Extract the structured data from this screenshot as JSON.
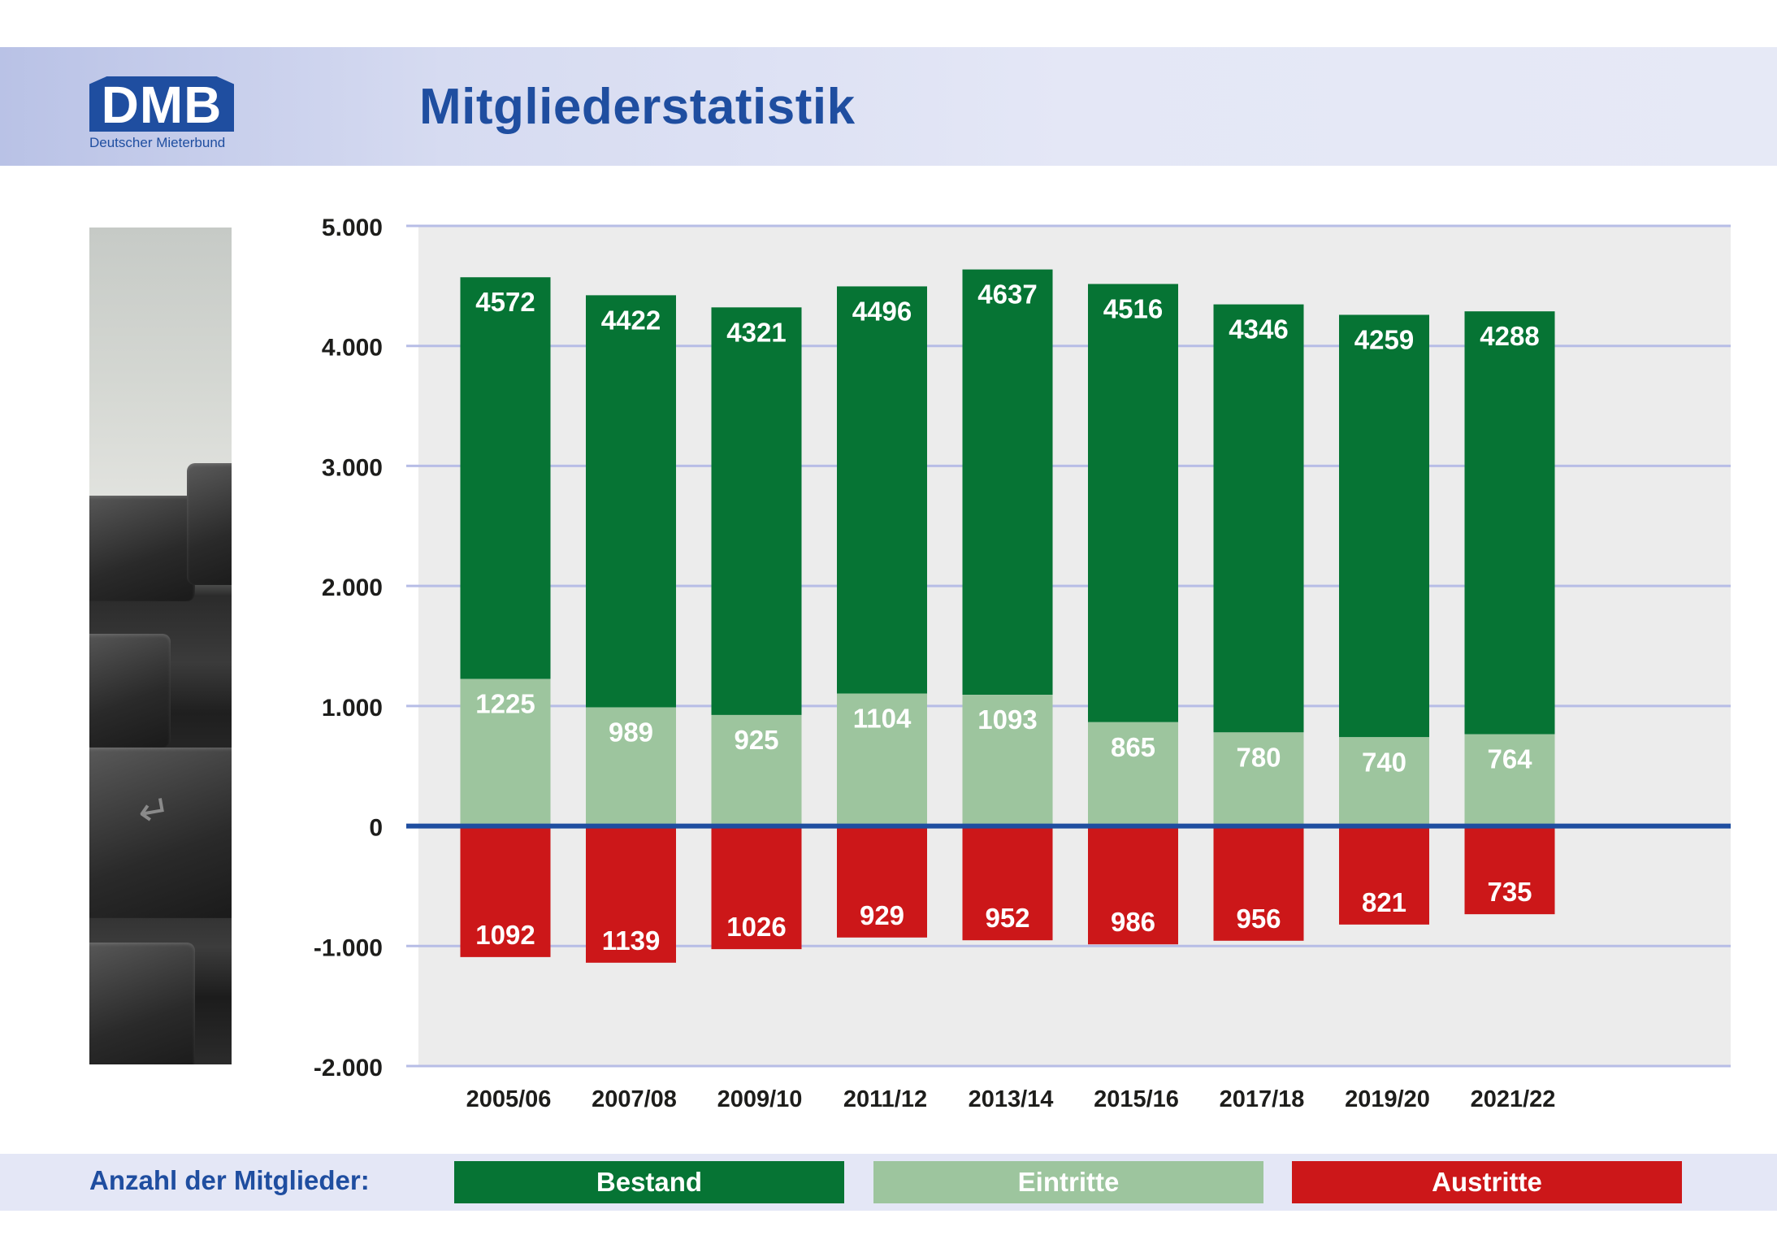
{
  "header": {
    "logo_text": "DMB",
    "logo_subtitle": "Deutscher Mieterbund",
    "title": "Mitgliederstatistik"
  },
  "legend": {
    "title": "Anzahl der Mitglieder:",
    "items": [
      {
        "label": "Bestand",
        "color": "#067434"
      },
      {
        "label": "Eintritte",
        "color": "#9dc59e"
      },
      {
        "label": "Austritte",
        "color": "#cc1719"
      }
    ]
  },
  "colors": {
    "plot_background": "#ececec",
    "gridline": "#b7bde6",
    "zero_line": "#1f4ea0",
    "axis_text": "#1d1d1b",
    "bar_label": "#ffffff"
  },
  "chart_data": {
    "type": "bar",
    "categories": [
      "2005/06",
      "2007/08",
      "2009/10",
      "2011/12",
      "2013/14",
      "2015/16",
      "2017/18",
      "2019/20",
      "2021/22"
    ],
    "series": [
      {
        "name": "Bestand",
        "values": [
          4572,
          4422,
          4321,
          4496,
          4637,
          4516,
          4346,
          4259,
          4288
        ]
      },
      {
        "name": "Eintritte",
        "values": [
          1225,
          989,
          925,
          1104,
          1093,
          865,
          780,
          740,
          764
        ]
      },
      {
        "name": "Austritte",
        "values": [
          -1092,
          -1139,
          -1026,
          -929,
          -952,
          -986,
          -956,
          -821,
          -735
        ]
      }
    ],
    "y_ticks": [
      "5.000",
      "4.000",
      "3.000",
      "2.000",
      "1.000",
      "0",
      "-1.000",
      "-2.000"
    ],
    "ylim": [
      -2000,
      5000
    ],
    "grid": true,
    "legend_position": "bottom"
  }
}
